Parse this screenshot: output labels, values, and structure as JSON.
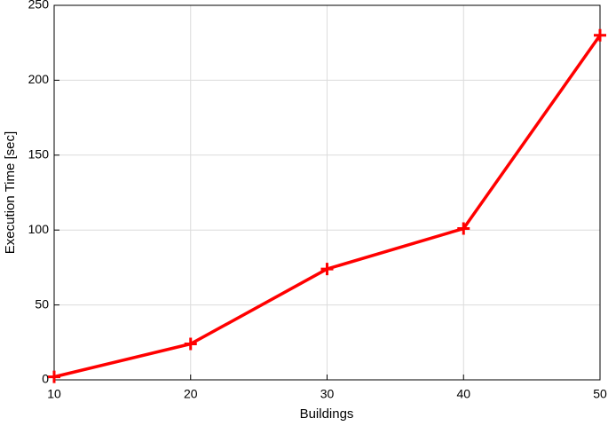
{
  "chart_data": {
    "type": "line",
    "x_label": "Buildings",
    "y_label": "Execution Time [sec]",
    "x": [
      10,
      20,
      30,
      40,
      50
    ],
    "series": [
      {
        "name": "Execution Time",
        "color": "#ff0000",
        "values": [
          2,
          24,
          74,
          101,
          230
        ]
      }
    ],
    "xlim": [
      10,
      50
    ],
    "xticks": [
      10,
      20,
      30,
      40,
      50
    ],
    "ylim": [
      0,
      250
    ],
    "yticks": [
      0,
      50,
      100,
      150,
      200,
      250
    ],
    "grid": true,
    "marker": "+"
  }
}
